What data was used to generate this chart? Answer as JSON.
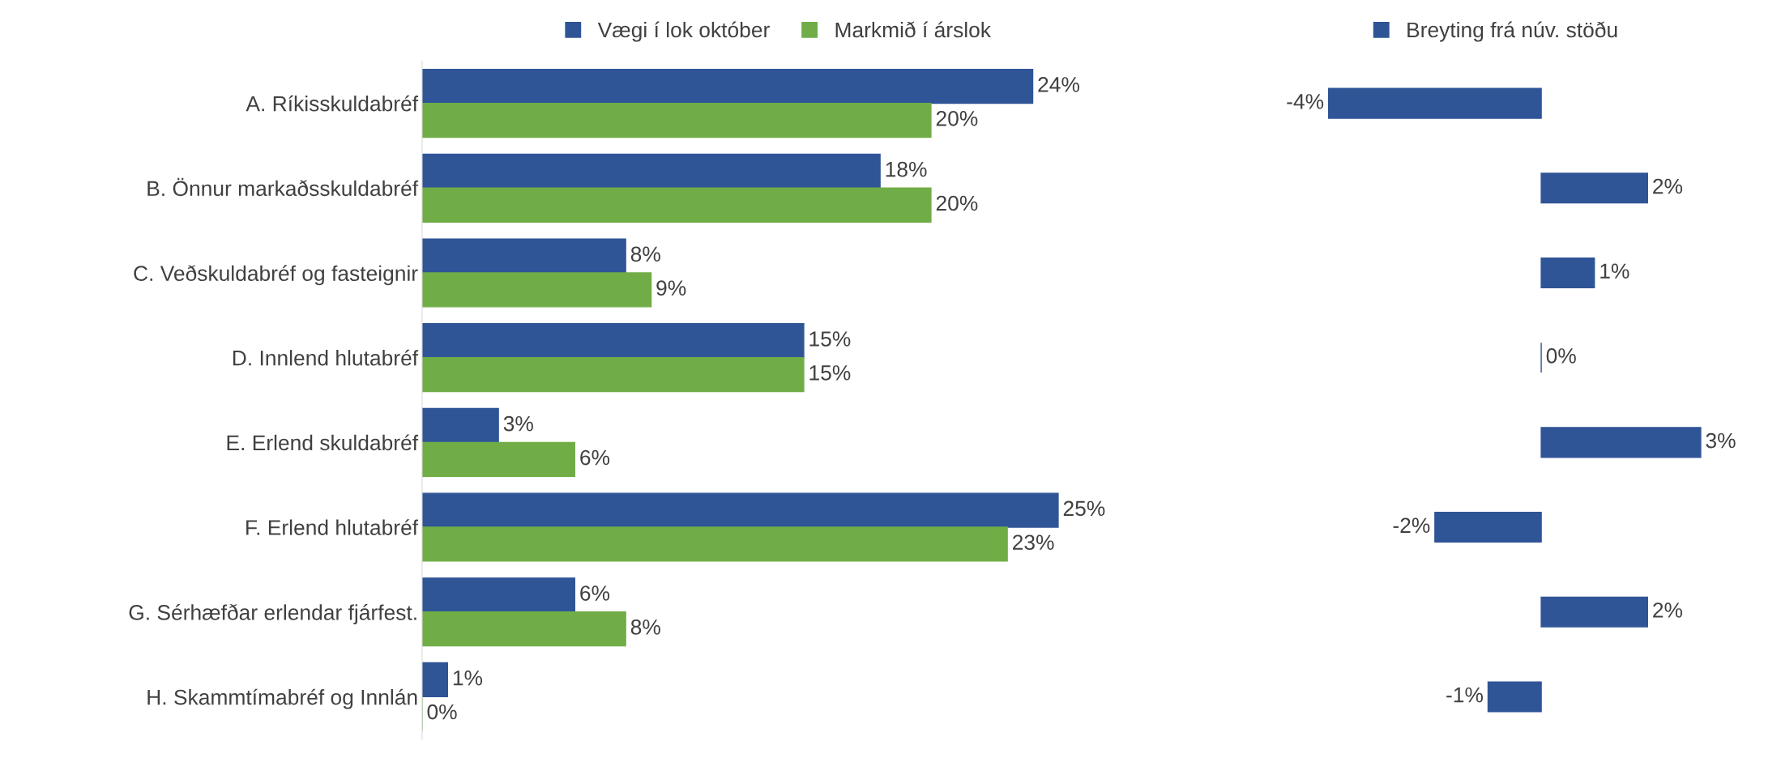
{
  "chart_data": [
    {
      "type": "bar",
      "orientation": "horizontal",
      "categories": [
        "A. Ríkisskuldabréf",
        "B. Önnur markaðsskuldabréf",
        "C. Veðskuldabréf og fasteignir",
        "D. Innlend hlutabréf",
        "E. Erlend skuldabréf",
        "F. Erlend hlutabréf",
        "G. Sérhæfðar erlendar fjárfest.",
        "H. Skammtímabréf og Innlán"
      ],
      "series": [
        {
          "name": "Vægi í lok október",
          "color": "#2f5597",
          "values": [
            24,
            18,
            8,
            15,
            3,
            25,
            6,
            1
          ],
          "value_labels": [
            "24%",
            "18%",
            "8%",
            "15%",
            "3%",
            "25%",
            "6%",
            "1%"
          ]
        },
        {
          "name": "Markmið í árslok",
          "color": "#70ad47",
          "values": [
            20,
            20,
            9,
            15,
            6,
            23,
            8,
            0
          ],
          "value_labels": [
            "20%",
            "20%",
            "9%",
            "15%",
            "6%",
            "23%",
            "8%",
            "0%"
          ]
        }
      ],
      "legend": "top",
      "tick_labels": "y",
      "grid": false
    },
    {
      "type": "bar",
      "orientation": "horizontal",
      "categories": [
        null,
        null,
        null,
        null,
        null,
        null,
        null,
        null
      ],
      "series": [
        {
          "name": "Breyting frá núv. stöðu",
          "color": "#2f5597",
          "values": [
            -4,
            2,
            1,
            0,
            3,
            -2,
            2,
            -1
          ],
          "value_labels": [
            "-4%",
            "2%",
            "1%",
            "0%",
            "3%",
            "-2%",
            "2%",
            "-1%"
          ]
        }
      ],
      "legend": "top",
      "tick_labels": false,
      "grid": false
    }
  ]
}
